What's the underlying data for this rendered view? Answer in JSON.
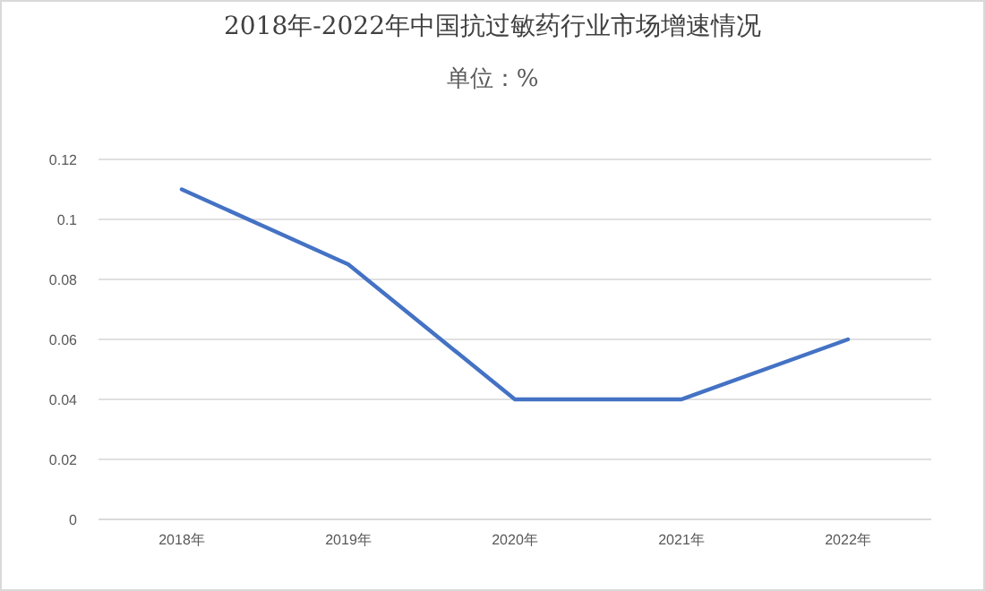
{
  "chart_data": {
    "type": "line",
    "title": "2018年-2022年中国抗过敏药行业市场增速情况",
    "subtitle": "单位：%",
    "categories": [
      "2018年",
      "2019年",
      "2020年",
      "2021年",
      "2022年"
    ],
    "series": [
      {
        "color": "#4472c4",
        "values": [
          0.11,
          0.085,
          0.04,
          0.04,
          0.06
        ]
      }
    ],
    "ylim": [
      0,
      0.12
    ],
    "yticks": [
      0,
      0.02,
      0.04,
      0.06,
      0.08,
      0.1,
      0.12
    ],
    "grid": "y",
    "marker": "none",
    "line_style": "solid"
  }
}
